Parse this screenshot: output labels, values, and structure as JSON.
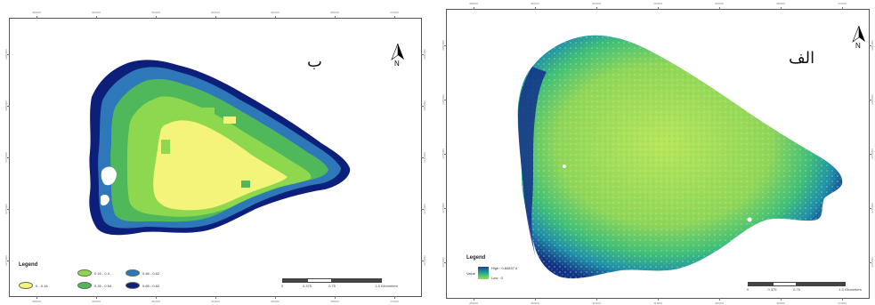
{
  "panels": {
    "b": {
      "label": "ب",
      "north": "N",
      "legend": {
        "title": "Legend",
        "classes": [
          {
            "label": "0 - 0.16",
            "color": "#f4f37a"
          },
          {
            "label": "0.16 - 0.4",
            "color": "#8ed84f"
          },
          {
            "label": "0.26 - 0.54",
            "color": "#4fb85a"
          },
          {
            "label": "0.46 - 0.62",
            "color": "#2e77b8"
          },
          {
            "label": "0.65 - 0.82",
            "color": "#0c1f7a"
          }
        ]
      },
      "scale": {
        "labels": [
          "0",
          "0.375",
          "0.75",
          "1.5 Kilometers"
        ]
      },
      "ticks_x": [
        "458000",
        "460000",
        "462000",
        "464000",
        "466000",
        "468000",
        "470000"
      ],
      "ticks_y": [
        "3282000",
        "3280000",
        "3278000",
        "3276000",
        "3274000"
      ]
    },
    "alef": {
      "label": "الف",
      "north": "N",
      "legend": {
        "title": "Legend",
        "subtitle": "Value",
        "high": "High : 0.84837 6",
        "low": "Low : 0"
      },
      "scale": {
        "labels": [
          "0",
          "0.375",
          "0.75",
          "1.5 Kilometers"
        ]
      },
      "ticks_x": [
        "458000",
        "460000",
        "462000",
        "464000",
        "466000",
        "468000",
        "470000"
      ],
      "ticks_y": [
        "3282000",
        "3280000",
        "3278000",
        "3276000",
        "3274000"
      ]
    }
  },
  "colors": {
    "deep": "#0c1f7a",
    "blue": "#2e77b8",
    "teal": "#1fae8a",
    "green": "#4fb85a",
    "lightgreen": "#8ed84f",
    "yellow": "#f4f37a",
    "frame": "#555555"
  }
}
